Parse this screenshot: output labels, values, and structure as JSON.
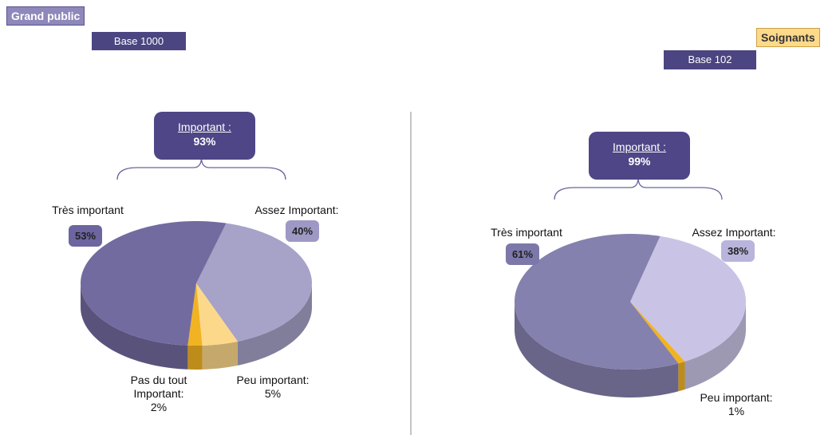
{
  "chart_data": [
    {
      "type": "pie",
      "title": "Grand public",
      "subtitle": "Base 1000",
      "annotation": {
        "label": "Important :",
        "text": "93%"
      },
      "categories": [
        "Assez Important:",
        "Peu important:",
        "Pas du tout Important:",
        "Très important"
      ],
      "values": [
        40,
        5,
        2,
        53
      ],
      "value_labels": [
        "40%",
        "5%",
        "2%",
        "53%"
      ],
      "colors": [
        "#a6a2c8",
        "#fcd98a",
        "#f2b322",
        "#726b9f"
      ]
    },
    {
      "type": "pie",
      "title": "Soignants",
      "subtitle": "Base 102",
      "annotation": {
        "label": "Important :",
        "text": "99%"
      },
      "categories": [
        "Assez Important:",
        "Peu important:",
        "Très important"
      ],
      "values": [
        38,
        1,
        61
      ],
      "value_labels": [
        "38%",
        "1%",
        "61%"
      ],
      "colors": [
        "#c9c4e6",
        "#f2b322",
        "#8581ae"
      ]
    }
  ]
}
